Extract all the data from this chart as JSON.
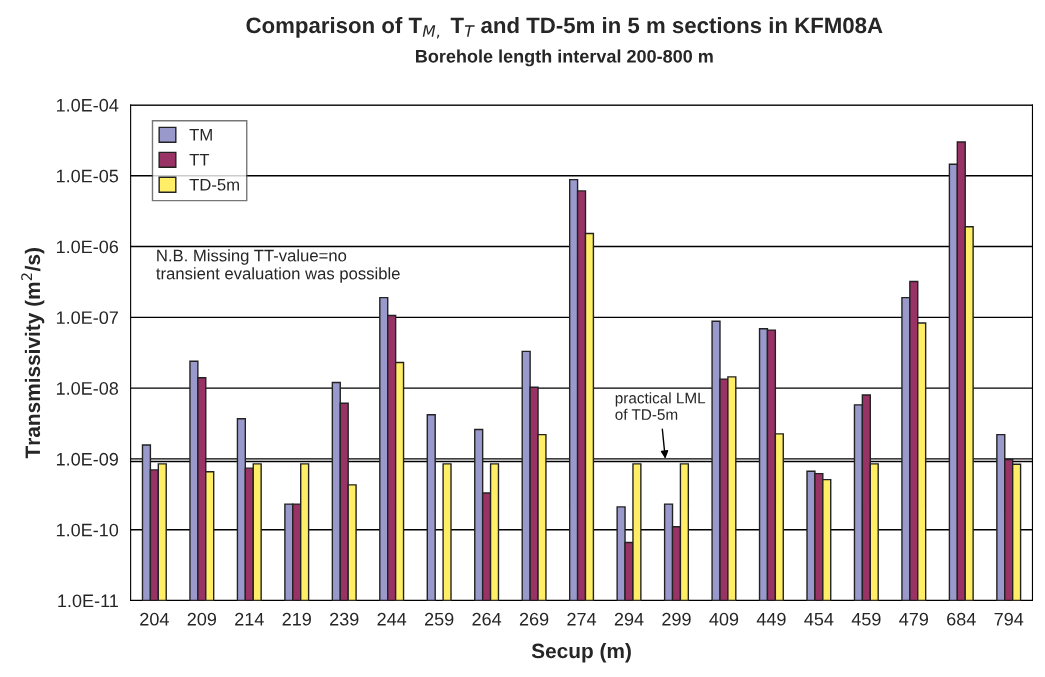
{
  "chart_data": {
    "type": "bar",
    "title": "Comparison of T$_{M,}$ T$_{T}$ and TD-5m in 5 m sections in KFM08A",
    "subtitle": "Borehole length interval 200-800 m",
    "xlabel": "Secup (m)",
    "ylabel": "Transmissivity (m$^{2}$/s)",
    "categories": [
      "204",
      "209",
      "214",
      "219",
      "239",
      "244",
      "259",
      "264",
      "269",
      "274",
      "294",
      "299",
      "409",
      "449",
      "454",
      "459",
      "479",
      "684",
      "794"
    ],
    "series": [
      {
        "name": "TM",
        "color": "#9999cc",
        "values": [
          1.57e-09,
          2.4e-08,
          3.7e-09,
          2.3e-10,
          1.2e-08,
          1.9e-07,
          4.2e-09,
          2.6e-09,
          3.3e-08,
          8.8e-06,
          2.1e-10,
          2.3e-10,
          8.8e-08,
          6.9e-08,
          6.7e-10,
          5.8e-09,
          1.9e-07,
          1.45e-05,
          2.2e-09
        ]
      },
      {
        "name": "TT",
        "color": "#993366",
        "values": [
          7e-10,
          1.4e-08,
          7.4e-10,
          2.3e-10,
          6.1e-09,
          1.06e-07,
          null,
          3.3e-10,
          1.03e-08,
          6.1e-06,
          6.6e-11,
          1.1e-10,
          1.34e-08,
          6.6e-08,
          6.2e-10,
          8e-09,
          3.2e-07,
          3e-05,
          9.8e-10
        ]
      },
      {
        "name": "TD-5m",
        "color": "#ffee66",
        "values": [
          8.5e-10,
          6.6e-10,
          8.5e-10,
          8.5e-10,
          4.3e-10,
          2.3e-08,
          8.5e-10,
          8.5e-10,
          2.2e-09,
          1.53e-06,
          8.5e-10,
          8.5e-10,
          1.44e-08,
          2.26e-09,
          5.1e-10,
          8.5e-10,
          8.3e-08,
          1.9e-06,
          8.4e-10
        ]
      }
    ],
    "log": true,
    "ylim": [
      1e-11,
      0.0001
    ],
    "yticks": [
      {
        "value": 1e-11,
        "label": "1.0E-11"
      },
      {
        "value": 1e-10,
        "label": "1.0E-10"
      },
      {
        "value": 1e-09,
        "label": "1.0E-09"
      },
      {
        "value": 1e-08,
        "label": "1.0E-08"
      },
      {
        "value": 1e-07,
        "label": "1.0E-07"
      },
      {
        "value": 1e-06,
        "label": "1.0E-06"
      },
      {
        "value": 1e-05,
        "label": "1.0E-05"
      },
      {
        "value": 0.0001,
        "label": "1.0E-04"
      }
    ],
    "grid": "y",
    "legend": "top left",
    "ref_lines": [
      {
        "axis": "y",
        "value": 9.2e-10,
        "label": "practical LML\nof TD-5m",
        "color": "#000000"
      }
    ],
    "annotations": [
      "N.B. Missing TT-value=no\ntransient evaluation was possible"
    ]
  }
}
